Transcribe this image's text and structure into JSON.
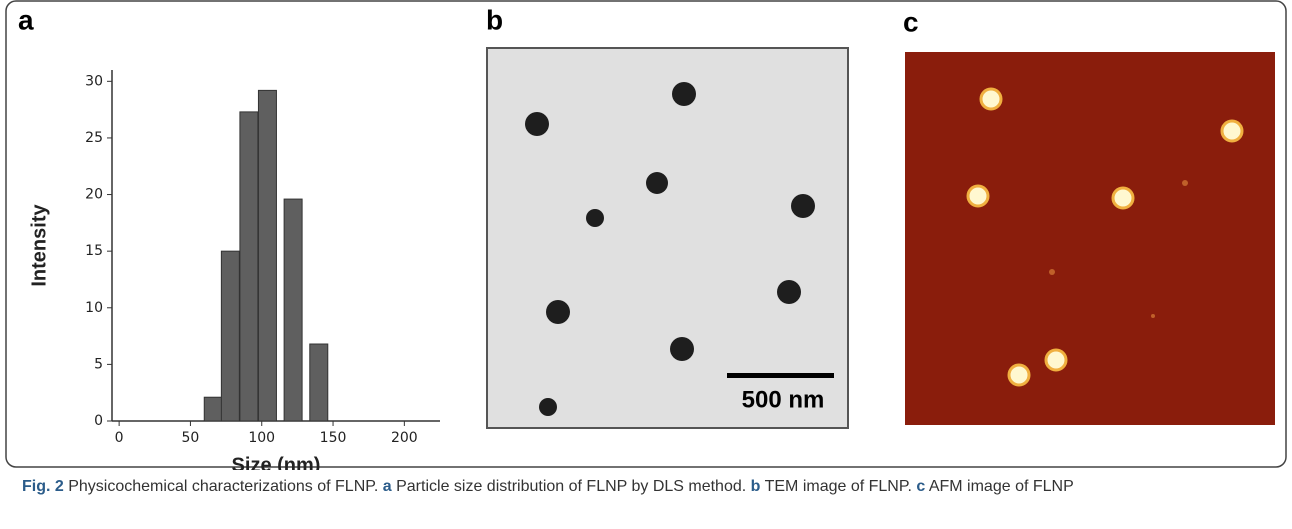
{
  "panels": {
    "a": "a",
    "b": "b",
    "c": "c"
  },
  "chart_data": {
    "type": "bar",
    "xlabel": "Size (nm)",
    "ylabel": "Intensity",
    "x": [
      66,
      78,
      91,
      104,
      122,
      140
    ],
    "values": [
      2.1,
      15,
      27.3,
      29.2,
      19.6,
      6.8
    ],
    "color": "#5f5f5f",
    "xlim": [
      -5,
      225
    ],
    "xticks": [
      0,
      50,
      100,
      150,
      200
    ],
    "ylim": [
      0,
      31
    ],
    "yticks": [
      0,
      5,
      10,
      15,
      20,
      25,
      30
    ]
  },
  "tem": {
    "scale_bar": "500 nm"
  },
  "caption": {
    "label": "Fig. 2",
    "text": "Physicochemical characterizations of FLNP.",
    "parts": [
      {
        "label": "a",
        "text": "Particle size distribution of FLNP by DLS method."
      },
      {
        "label": "b",
        "text": "TEM image of FLNP."
      },
      {
        "label": "c",
        "text": "AFM image of FLNP"
      }
    ]
  }
}
